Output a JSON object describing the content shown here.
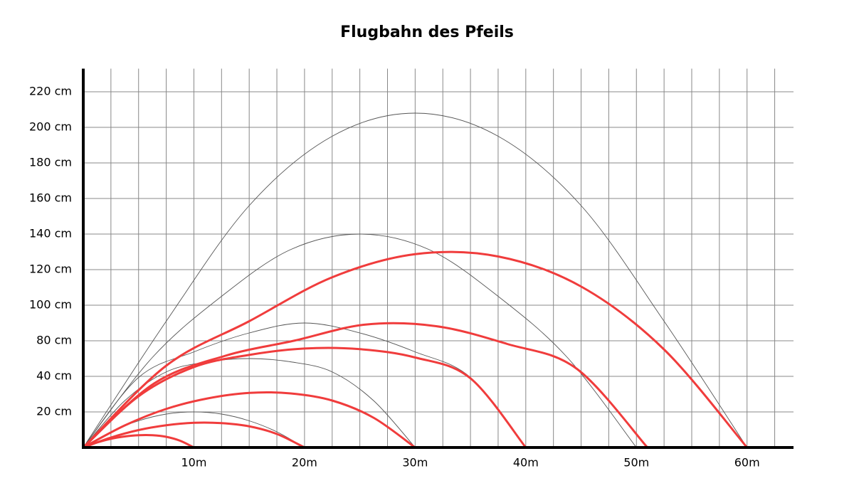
{
  "chart_data": {
    "type": "line",
    "title": "Flugbahn des Pfeils",
    "xlim": [
      0,
      64.2
    ],
    "xticks": [
      {
        "value": 10,
        "label": "10m"
      },
      {
        "value": 20,
        "label": "20m"
      },
      {
        "value": 30,
        "label": "30m"
      },
      {
        "value": 40,
        "label": "40m"
      },
      {
        "value": 50,
        "label": "50m"
      },
      {
        "value": 60,
        "label": "60m"
      }
    ],
    "x_gridlines": [
      2.5,
      5,
      7.5,
      10,
      12.5,
      15,
      17.5,
      20,
      22.5,
      25,
      27.5,
      30,
      32.5,
      35,
      37.5,
      40,
      42.5,
      45,
      47.5,
      50,
      52.5,
      55,
      57.5,
      60,
      62.5
    ],
    "ylim": [
      0,
      233
    ],
    "yticks": [
      {
        "value": 20,
        "label": "20 cm"
      },
      {
        "value": 40,
        "label": "40 cm"
      },
      {
        "value": 80,
        "label": "80 cm"
      },
      {
        "value": 100,
        "label": "100 cm"
      },
      {
        "value": 120,
        "label": "120 cm"
      },
      {
        "value": 140,
        "label": "140 cm"
      },
      {
        "value": 160,
        "label": "160 cm"
      },
      {
        "value": 180,
        "label": "180 cm"
      },
      {
        "value": 200,
        "label": "200 cm"
      },
      {
        "value": 220,
        "label": "220 cm"
      }
    ],
    "grid": true,
    "series": [
      {
        "color": "#555555",
        "line_width": 0.9,
        "x": [
          0,
          2.5,
          5,
          7.5,
          10,
          12.5,
          15,
          17.5,
          20
        ],
        "values": [
          0,
          8.8,
          15,
          18.8,
          20,
          18.8,
          15,
          8.8,
          0
        ]
      },
      {
        "color": "#555555",
        "line_width": 0.9,
        "x": [
          0,
          3.75,
          7.5,
          11.25,
          15,
          18.75,
          22.5,
          26.25,
          30
        ],
        "values": [
          0,
          26.3,
          45,
          56.3,
          60,
          56.3,
          45,
          26.3,
          0
        ]
      },
      {
        "color": "#555555",
        "line_width": 0.9,
        "x": [
          0,
          5,
          10,
          15,
          20,
          25,
          30,
          35,
          40
        ],
        "values": [
          0,
          39.4,
          67.5,
          84.4,
          90,
          84.4,
          67.5,
          39.4,
          0
        ]
      },
      {
        "color": "#555555",
        "line_width": 0.9,
        "x": [
          0,
          6.25,
          12.5,
          18.75,
          25,
          31.25,
          37.5,
          43.75,
          50
        ],
        "values": [
          0,
          61.3,
          105,
          131.3,
          140,
          131.3,
          105,
          61.3,
          0
        ]
      },
      {
        "color": "#555555",
        "line_width": 0.9,
        "x": [
          0,
          7.5,
          15,
          22.5,
          30,
          37.5,
          45,
          52.5,
          60
        ],
        "values": [
          0,
          91,
          156,
          195,
          208,
          195,
          156,
          91,
          0
        ]
      },
      {
        "color": "#f03c3c",
        "line_width": 3,
        "x": [
          0,
          1.25,
          2.5,
          3.75,
          5,
          6.25,
          7.5,
          8.75,
          10
        ],
        "values": [
          0,
          2.8,
          4.9,
          6.2,
          6.9,
          6.9,
          6,
          3.8,
          0
        ]
      },
      {
        "color": "#f03c3c",
        "line_width": 3,
        "x": [
          0,
          2.5,
          5,
          7.5,
          10,
          12.5,
          15,
          17.5,
          20
        ],
        "values": [
          0,
          5.6,
          9.8,
          12.5,
          13.9,
          13.7,
          11.9,
          7.6,
          0
        ]
      },
      {
        "color": "#f03c3c",
        "line_width": 3,
        "x": [
          0,
          3.75,
          7.5,
          11.25,
          15,
          18.75,
          22.5,
          26.25,
          30
        ],
        "values": [
          0,
          12.4,
          21.7,
          27.6,
          30.7,
          30.4,
          26.4,
          16.7,
          0
        ]
      },
      {
        "color": "#f03c3c",
        "line_width": 3,
        "x": [
          0,
          5,
          10,
          15,
          20,
          25,
          30,
          35,
          40
        ],
        "values": [
          0,
          28.8,
          50.4,
          64.1,
          71.3,
          70.6,
          61.2,
          38.9,
          0
        ]
      },
      {
        "color": "#f03c3c",
        "line_width": 3,
        "x": [
          0,
          6.4,
          12.8,
          19.1,
          25.5,
          31.9,
          38.3,
          44.6,
          51
        ],
        "values": [
          0,
          36,
          63,
          80.1,
          89.1,
          88.2,
          76.5,
          48.6,
          0
        ]
      },
      {
        "color": "#f03c3c",
        "line_width": 3,
        "x": [
          0,
          7.5,
          15,
          22.5,
          30,
          37.5,
          45,
          52.5,
          60
        ],
        "values": [
          0,
          52,
          91,
          115.7,
          128.7,
          127.4,
          110.5,
          70.2,
          0
        ]
      }
    ]
  }
}
